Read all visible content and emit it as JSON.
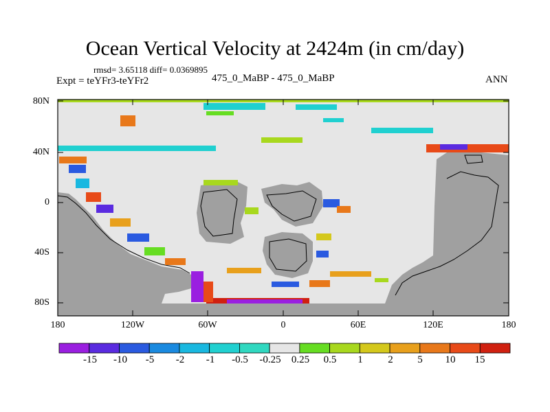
{
  "title": "Ocean Vertical Velocity at 2424m (in cm/day)",
  "stats": "rmsd= 3.65118 diff= 0.0369895",
  "experiment": "Expt = teYFr3-teYFr2",
  "case": "475_0_MaBP - 475_0_MaBP",
  "season": "ANN",
  "lat_ticks": [
    "80N",
    "40N",
    "0",
    "40S",
    "80S"
  ],
  "lon_ticks": [
    "180",
    "120W",
    "60W",
    "0",
    "60E",
    "120E",
    "180"
  ],
  "colorbar": {
    "labels": [
      "-15",
      "-10",
      "-5",
      "-2",
      "-1",
      "-0.5",
      "-0.25",
      "0.25",
      "0.5",
      "1",
      "2",
      "5",
      "10",
      "15"
    ],
    "colors": [
      "#9a1fe0",
      "#5a2be0",
      "#2a5ae0",
      "#1a8ae0",
      "#19b8e0",
      "#20d0d0",
      "#30d8c0",
      "#e6e6e6",
      "#66dd22",
      "#a8d81e",
      "#d4c81c",
      "#e8a01c",
      "#e8781a",
      "#e84a18",
      "#d02010"
    ]
  },
  "colors": {
    "land": "#a0a0a0",
    "ocean_neutral": "#e6e6e6"
  }
}
